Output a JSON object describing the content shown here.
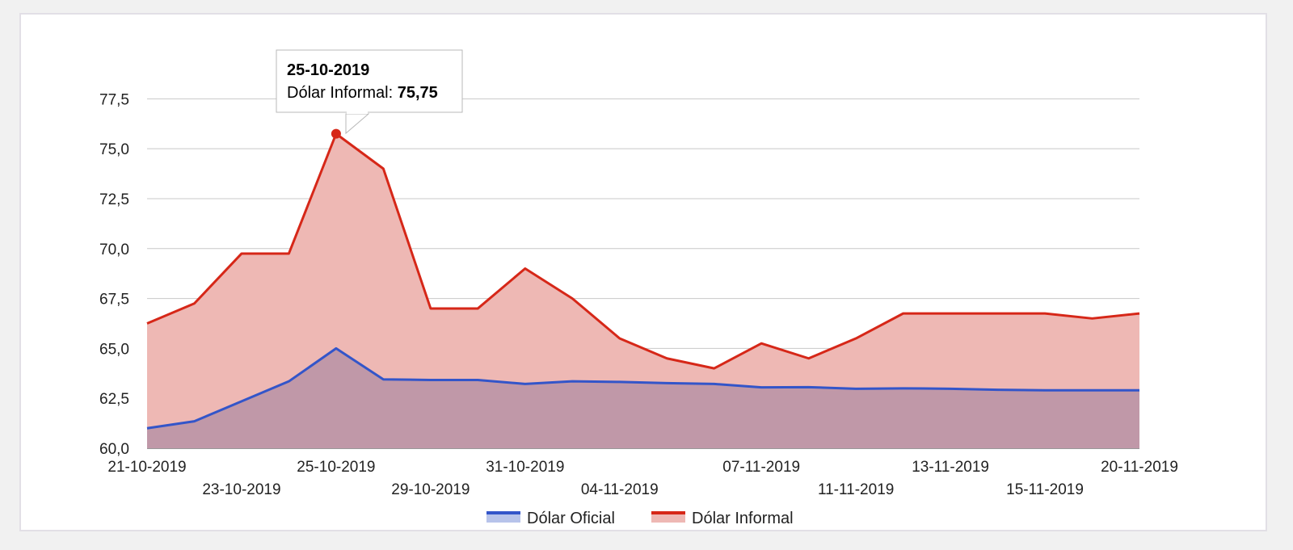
{
  "chart_data": {
    "type": "area",
    "x": [
      "21-10-2019",
      "22-10-2019",
      "23-10-2019",
      "24-10-2019",
      "25-10-2019",
      "28-10-2019",
      "29-10-2019",
      "30-10-2019",
      "31-10-2019",
      "01-11-2019",
      "04-11-2019",
      "05-11-2019",
      "06-11-2019",
      "07-11-2019",
      "08-11-2019",
      "11-11-2019",
      "12-11-2019",
      "13-11-2019",
      "14-11-2019",
      "15-11-2019",
      "19-11-2019",
      "20-11-2019"
    ],
    "x_tick_labels": [
      "21-10-2019",
      "23-10-2019",
      "25-10-2019",
      "29-10-2019",
      "31-10-2019",
      "04-11-2019",
      "07-11-2019",
      "11-11-2019",
      "13-11-2019",
      "15-11-2019",
      "20-11-2019"
    ],
    "series": [
      {
        "name": "Dólar Oficial",
        "color": "#3355c9",
        "fill": "#b7c3ea",
        "values": [
          61.0,
          61.35,
          62.35,
          63.35,
          65.0,
          63.45,
          63.42,
          63.42,
          63.22,
          63.35,
          63.32,
          63.26,
          63.22,
          63.05,
          63.06,
          62.98,
          63.0,
          62.98,
          62.93,
          62.9,
          62.9,
          62.9
        ]
      },
      {
        "name": "Dólar Informal",
        "color": "#d62718",
        "fill": "#eeb8b4",
        "values": [
          66.25,
          67.25,
          69.75,
          69.75,
          75.75,
          74.0,
          67.0,
          67.0,
          69.0,
          67.5,
          65.5,
          64.5,
          64.0,
          65.25,
          64.5,
          65.5,
          66.75,
          66.75,
          66.75,
          66.75,
          66.5,
          66.75
        ]
      }
    ],
    "yticks": [
      "60,0",
      "62,5",
      "65,0",
      "67,5",
      "70,0",
      "72,5",
      "75,0",
      "77,5"
    ],
    "ylim": [
      60,
      78
    ],
    "overlap_fill": "#c098a8",
    "legend_position": "bottom",
    "grid": true,
    "tooltip": {
      "date": "25-10-2019",
      "series_label": "Dólar Informal:",
      "value": "75,75",
      "point_index": 4
    }
  }
}
